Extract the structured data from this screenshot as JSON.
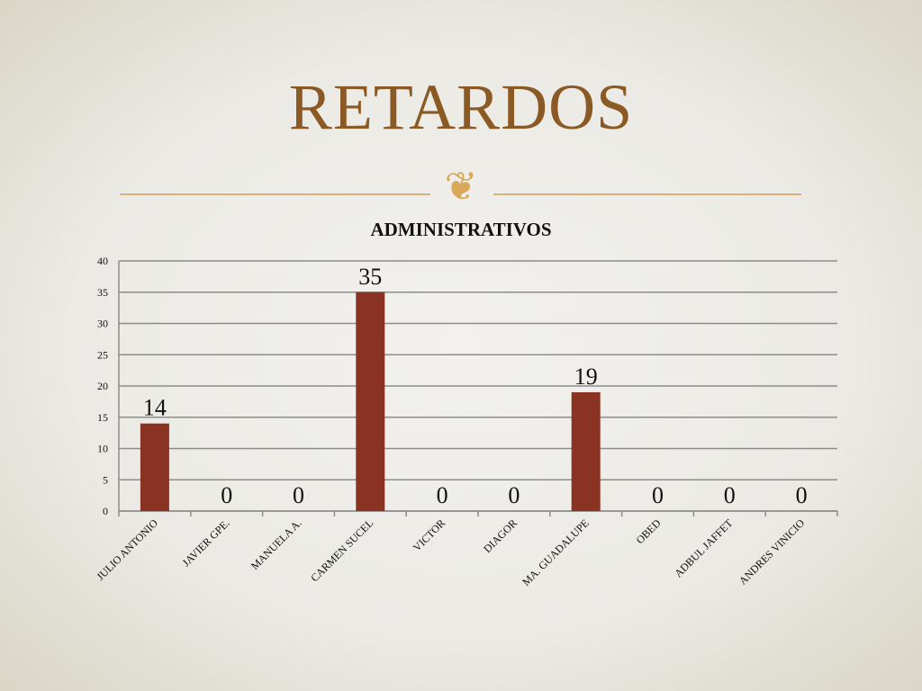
{
  "slide": {
    "title": "RETARDOS",
    "ornament_icon": "ornament-icon",
    "accent_color": "#8b5a24"
  },
  "chart_data": {
    "type": "bar",
    "title": "ADMINISTRATIVOS",
    "categories": [
      "JULIO ANTONIO",
      "JAVIER GPE.",
      "MANUELA A.",
      "CARMEN SUCEL",
      "VICTOR",
      "DIAGOR",
      "MA. GUADALUPE",
      "OBED",
      "ADBUL JAFFET",
      "ANDRES VINICIO"
    ],
    "values": [
      14,
      0,
      0,
      35,
      0,
      0,
      19,
      0,
      0,
      0
    ],
    "ylim": [
      0,
      40
    ],
    "yticks": [
      0,
      5,
      10,
      15,
      20,
      25,
      30,
      35,
      40
    ],
    "grid": true,
    "bar_color": "#8b3322",
    "data_labels": true
  }
}
